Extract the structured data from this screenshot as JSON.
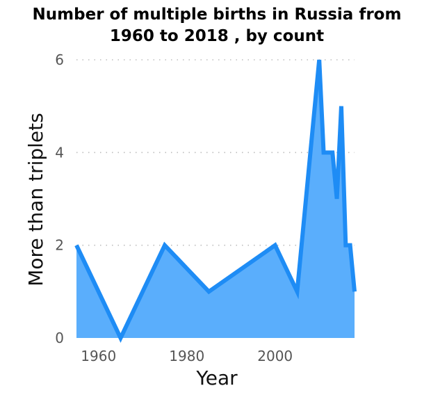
{
  "chart_data": {
    "type": "area",
    "title_lines": [
      "Number of multiple births in Russia from",
      "1960 to 2018 , by count"
    ],
    "xlabel": "Year",
    "ylabel": "More than triplets",
    "x_ticks": [
      1960,
      1980,
      2000
    ],
    "y_ticks": [
      0,
      2,
      4,
      6
    ],
    "xlim": [
      1955,
      2018
    ],
    "ylim": [
      0,
      6
    ],
    "grid": "horizontal dotted",
    "colors": {
      "line": "#1e8cf5",
      "fill": "#5aaefc"
    },
    "series": [
      {
        "x": [
          1955,
          1965,
          1975,
          1985,
          2000,
          2005,
          2010,
          2011,
          2013,
          2014,
          2015,
          2016,
          2017,
          2018
        ],
        "y": [
          2,
          0,
          2,
          1,
          2,
          1,
          6,
          4,
          4,
          3,
          5,
          2,
          2,
          1
        ]
      }
    ]
  }
}
